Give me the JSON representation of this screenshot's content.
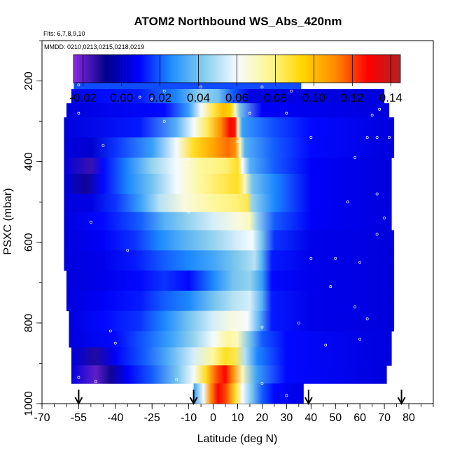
{
  "chart_data": {
    "type": "heatmap",
    "title": "ATOM2 Northbound WS_Abs_420nm",
    "flights_label": "Flts: 6,7,8,9,10",
    "dates_label": "MMDD: 0210,0213,0215,0218,0219",
    "xlabel": "Latitude (deg N)",
    "ylabel": "PSXC (mbar)",
    "xlim": [
      -70,
      90
    ],
    "ylim": [
      1000,
      100
    ],
    "x_ticks": [
      -70,
      -55,
      -40,
      -25,
      -10,
      0,
      10,
      20,
      30,
      40,
      50,
      60,
      70,
      80
    ],
    "x_tick_labels": [
      "-70",
      "-55",
      "-40",
      "-25",
      "-10",
      "0",
      "10",
      "20",
      "30",
      "40",
      "50",
      "60",
      "70",
      "80"
    ],
    "y_ticks": [
      200,
      400,
      600,
      800,
      1000
    ],
    "y_tick_labels": [
      "200",
      "400",
      "600",
      "800",
      "1000"
    ],
    "colorbar": {
      "min": -0.025,
      "max": 0.145,
      "ticks": [
        -0.02,
        0.0,
        0.02,
        0.04,
        0.06,
        0.08,
        0.1,
        0.12,
        0.14
      ],
      "tick_labels": [
        "-0.02",
        "0.00",
        "0.02",
        "0.04",
        "0.06",
        "0.08",
        "0.10",
        "0.12",
        "0.14"
      ],
      "colors": [
        "#8a2be2",
        "#00008b",
        "#0000ff",
        "#1e90ff",
        "#87ceeb",
        "#f5fbff",
        "#fff68f",
        "#ffd700",
        "#ff8c00",
        "#ff0000",
        "#b22222"
      ]
    },
    "layers": [
      {
        "p_top": 175,
        "p_bot": 220,
        "lat_min": -57,
        "lat_max": 36,
        "nodes": [
          [
            -57,
            0.018
          ],
          [
            36,
            0.018
          ]
        ]
      },
      {
        "p_top": 220,
        "p_bot": 255,
        "lat_min": -58,
        "lat_max": 70,
        "nodes": [
          [
            -58,
            0.008
          ],
          [
            -30,
            0.012
          ],
          [
            -15,
            0.025
          ],
          [
            -5,
            0.045
          ],
          [
            2,
            0.04
          ],
          [
            8,
            0.02
          ],
          [
            15,
            0.005
          ],
          [
            70,
            0.004
          ]
        ]
      },
      {
        "p_top": 255,
        "p_bot": 290,
        "lat_min": -60,
        "lat_max": 72,
        "nodes": [
          [
            -60,
            0.004
          ],
          [
            -20,
            0.01
          ],
          [
            -10,
            0.03
          ],
          [
            -5,
            0.06
          ],
          [
            0,
            0.085
          ],
          [
            4,
            0.1
          ],
          [
            7,
            0.095
          ],
          [
            9,
            0.07
          ],
          [
            11,
            0.04
          ],
          [
            20,
            0.008
          ],
          [
            72,
            0.004
          ]
        ]
      },
      {
        "p_top": 290,
        "p_bot": 340,
        "lat_min": -61,
        "lat_max": 74,
        "nodes": [
          [
            -61,
            0.004
          ],
          [
            -30,
            0.012
          ],
          [
            -15,
            0.035
          ],
          [
            -8,
            0.06
          ],
          [
            -2,
            0.085
          ],
          [
            3,
            0.11
          ],
          [
            7,
            0.13
          ],
          [
            9,
            0.125
          ],
          [
            10,
            0.07
          ],
          [
            12,
            0.03
          ],
          [
            25,
            0.018
          ],
          [
            40,
            0.01
          ],
          [
            74,
            0.004
          ]
        ]
      },
      {
        "p_top": 340,
        "p_bot": 390,
        "lat_min": -61,
        "lat_max": 74,
        "nodes": [
          [
            -61,
            0.004
          ],
          [
            -50,
            0.002
          ],
          [
            -40,
            0.015
          ],
          [
            -25,
            0.03
          ],
          [
            -15,
            0.06
          ],
          [
            -8,
            0.09
          ],
          [
            0,
            0.105
          ],
          [
            6,
            0.115
          ],
          [
            9,
            0.11
          ],
          [
            11,
            0.07
          ],
          [
            13,
            0.035
          ],
          [
            25,
            0.02
          ],
          [
            40,
            0.01
          ],
          [
            74,
            0.004
          ]
        ]
      },
      {
        "p_top": 390,
        "p_bot": 430,
        "lat_min": -61,
        "lat_max": 73,
        "nodes": [
          [
            -61,
            0.004
          ],
          [
            -50,
            -0.015
          ],
          [
            -45,
            0.01
          ],
          [
            -35,
            0.025
          ],
          [
            -25,
            0.045
          ],
          [
            -15,
            0.06
          ],
          [
            -5,
            0.075
          ],
          [
            5,
            0.08
          ],
          [
            10,
            0.09
          ],
          [
            12,
            0.06
          ],
          [
            15,
            0.035
          ],
          [
            25,
            0.02
          ],
          [
            40,
            0.008
          ],
          [
            73,
            0.004
          ]
        ]
      },
      {
        "p_top": 430,
        "p_bot": 480,
        "lat_min": -61,
        "lat_max": 73,
        "nodes": [
          [
            -61,
            0.004
          ],
          [
            -52,
            -0.01
          ],
          [
            -45,
            0.01
          ],
          [
            -35,
            0.025
          ],
          [
            -25,
            0.04
          ],
          [
            -15,
            0.06
          ],
          [
            -5,
            0.075
          ],
          [
            5,
            0.085
          ],
          [
            10,
            0.09
          ],
          [
            13,
            0.07
          ],
          [
            16,
            0.04
          ],
          [
            25,
            0.025
          ],
          [
            40,
            0.008
          ],
          [
            73,
            0.004
          ]
        ]
      },
      {
        "p_top": 480,
        "p_bot": 525,
        "lat_min": -61,
        "lat_max": 73,
        "nodes": [
          [
            -61,
            0.004
          ],
          [
            -50,
            0.005
          ],
          [
            -40,
            0.015
          ],
          [
            -30,
            0.03
          ],
          [
            -22,
            0.05
          ],
          [
            -12,
            0.065
          ],
          [
            0,
            0.075
          ],
          [
            10,
            0.08
          ],
          [
            14,
            0.085
          ],
          [
            16,
            0.045
          ],
          [
            25,
            0.025
          ],
          [
            40,
            0.008
          ],
          [
            73,
            0.004
          ]
        ]
      },
      {
        "p_top": 525,
        "p_bot": 570,
        "lat_min": -61,
        "lat_max": 73,
        "nodes": [
          [
            -61,
            0.004
          ],
          [
            -45,
            0.01
          ],
          [
            -30,
            0.02
          ],
          [
            -20,
            0.035
          ],
          [
            -10,
            0.045
          ],
          [
            0,
            0.055
          ],
          [
            10,
            0.065
          ],
          [
            15,
            0.07
          ],
          [
            18,
            0.045
          ],
          [
            25,
            0.02
          ],
          [
            40,
            0.008
          ],
          [
            73,
            0.004
          ]
        ]
      },
      {
        "p_top": 570,
        "p_bot": 620,
        "lat_min": -61,
        "lat_max": 74,
        "nodes": [
          [
            -61,
            0.004
          ],
          [
            -45,
            0.008
          ],
          [
            -32,
            0.015
          ],
          [
            -22,
            0.025
          ],
          [
            -12,
            0.035
          ],
          [
            0,
            0.045
          ],
          [
            10,
            0.055
          ],
          [
            16,
            0.06
          ],
          [
            20,
            0.04
          ],
          [
            25,
            0.015
          ],
          [
            40,
            0.006
          ],
          [
            74,
            0.004
          ]
        ]
      },
      {
        "p_top": 620,
        "p_bot": 670,
        "lat_min": -61,
        "lat_max": 74,
        "nodes": [
          [
            -61,
            0.004
          ],
          [
            -45,
            0.006
          ],
          [
            -32,
            0.012
          ],
          [
            -20,
            0.02
          ],
          [
            -10,
            0.025
          ],
          [
            0,
            0.032
          ],
          [
            10,
            0.042
          ],
          [
            17,
            0.05
          ],
          [
            20,
            0.035
          ],
          [
            24,
            0.012
          ],
          [
            40,
            0.006
          ],
          [
            74,
            0.004
          ]
        ]
      },
      {
        "p_top": 670,
        "p_bot": 720,
        "lat_min": -60,
        "lat_max": 74,
        "nodes": [
          [
            -60,
            0.004
          ],
          [
            -45,
            0.006
          ],
          [
            -30,
            0.01
          ],
          [
            -20,
            0.015
          ],
          [
            -10,
            0.01
          ],
          [
            0,
            0.025
          ],
          [
            8,
            0.04
          ],
          [
            15,
            0.045
          ],
          [
            20,
            0.03
          ],
          [
            24,
            0.01
          ],
          [
            40,
            0.006
          ],
          [
            74,
            0.004
          ]
        ]
      },
      {
        "p_top": 720,
        "p_bot": 770,
        "lat_min": -60,
        "lat_max": 74,
        "nodes": [
          [
            -60,
            0.004
          ],
          [
            -45,
            0.008
          ],
          [
            -30,
            0.012
          ],
          [
            -20,
            0.02
          ],
          [
            -10,
            0.025
          ],
          [
            0,
            0.04
          ],
          [
            8,
            0.05
          ],
          [
            15,
            0.055
          ],
          [
            20,
            0.035
          ],
          [
            24,
            0.012
          ],
          [
            40,
            0.006
          ],
          [
            74,
            0.004
          ]
        ]
      },
      {
        "p_top": 770,
        "p_bot": 820,
        "lat_min": -59,
        "lat_max": 74,
        "nodes": [
          [
            -59,
            0.004
          ],
          [
            -45,
            0.01
          ],
          [
            -30,
            0.015
          ],
          [
            -20,
            0.025
          ],
          [
            -10,
            0.04
          ],
          [
            0,
            0.055
          ],
          [
            8,
            0.065
          ],
          [
            14,
            0.06
          ],
          [
            19,
            0.035
          ],
          [
            24,
            0.012
          ],
          [
            40,
            0.006
          ],
          [
            74,
            0.004
          ]
        ]
      },
      {
        "p_top": 820,
        "p_bot": 860,
        "lat_min": -59,
        "lat_max": 73,
        "nodes": [
          [
            -59,
            0.004
          ],
          [
            -40,
            0.01
          ],
          [
            -28,
            0.02
          ],
          [
            -18,
            0.03
          ],
          [
            -8,
            0.045
          ],
          [
            0,
            0.06
          ],
          [
            6,
            0.075
          ],
          [
            10,
            0.07
          ],
          [
            15,
            0.04
          ],
          [
            20,
            0.02
          ],
          [
            30,
            0.01
          ],
          [
            73,
            0.004
          ]
        ]
      },
      {
        "p_top": 860,
        "p_bot": 905,
        "lat_min": -58,
        "lat_max": 73,
        "nodes": [
          [
            -58,
            0.004
          ],
          [
            -48,
            -0.012
          ],
          [
            -40,
            0.008
          ],
          [
            -28,
            0.02
          ],
          [
            -18,
            0.035
          ],
          [
            -8,
            0.055
          ],
          [
            0,
            0.075
          ],
          [
            5,
            0.09
          ],
          [
            9,
            0.085
          ],
          [
            13,
            0.05
          ],
          [
            18,
            0.025
          ],
          [
            30,
            0.01
          ],
          [
            73,
            0.004
          ]
        ]
      },
      {
        "p_top": 905,
        "p_bot": 950,
        "lat_min": -58,
        "lat_max": 71,
        "nodes": [
          [
            -58,
            0.004
          ],
          [
            -48,
            -0.02
          ],
          [
            -42,
            -0.01
          ],
          [
            -35,
            0.008
          ],
          [
            -25,
            0.02
          ],
          [
            -15,
            0.04
          ],
          [
            -8,
            0.06
          ],
          [
            -3,
            0.09
          ],
          [
            2,
            0.12
          ],
          [
            5,
            0.13
          ],
          [
            8,
            0.11
          ],
          [
            12,
            0.07
          ],
          [
            18,
            0.03
          ],
          [
            30,
            0.01
          ],
          [
            71,
            0.004
          ]
        ]
      },
      {
        "p_top": 950,
        "p_bot": 1000,
        "lat_min": -8,
        "lat_max": 37,
        "nodes": [
          [
            -8,
            0.03
          ],
          [
            -4,
            0.06
          ],
          [
            -1,
            0.11
          ],
          [
            2,
            0.13
          ],
          [
            5,
            0.12
          ],
          [
            9,
            0.09
          ],
          [
            12,
            0.06
          ],
          [
            16,
            0.04
          ],
          [
            20,
            0.02
          ],
          [
            25,
            0.01
          ],
          [
            37,
            0.005
          ]
        ]
      }
    ],
    "sample_points": [
      [
        -55,
        210
      ],
      [
        -30,
        240
      ],
      [
        -25,
        245
      ],
      [
        -20,
        225
      ],
      [
        -5,
        215
      ],
      [
        20,
        215
      ],
      [
        32,
        225
      ],
      [
        -55,
        280
      ],
      [
        -20,
        300
      ],
      [
        15,
        280
      ],
      [
        30,
        280
      ],
      [
        65,
        285
      ],
      [
        68,
        270
      ],
      [
        -45,
        360
      ],
      [
        10,
        350
      ],
      [
        40,
        340
      ],
      [
        63,
        340
      ],
      [
        67,
        340
      ],
      [
        72,
        340
      ],
      [
        78,
        340
      ],
      [
        -10,
        395
      ],
      [
        58,
        390
      ],
      [
        67,
        480
      ],
      [
        -50,
        550
      ],
      [
        55,
        500
      ],
      [
        -10,
        525
      ],
      [
        70,
        540
      ],
      [
        67,
        580
      ],
      [
        40,
        640
      ],
      [
        50,
        640
      ],
      [
        60,
        650
      ],
      [
        -35,
        620
      ],
      [
        48,
        710
      ],
      [
        58,
        760
      ],
      [
        63,
        790
      ],
      [
        20,
        810
      ],
      [
        -42,
        820
      ],
      [
        35,
        800
      ],
      [
        60,
        840
      ],
      [
        75,
        860
      ],
      [
        -40,
        850
      ],
      [
        46,
        855
      ],
      [
        80,
        900
      ],
      [
        -48,
        945
      ],
      [
        -55,
        935
      ],
      [
        -15,
        940
      ],
      [
        20,
        950
      ],
      [
        30,
        980
      ],
      [
        12,
        960
      ]
    ],
    "arrows_lat": [
      -55,
      -8,
      39,
      77
    ]
  }
}
